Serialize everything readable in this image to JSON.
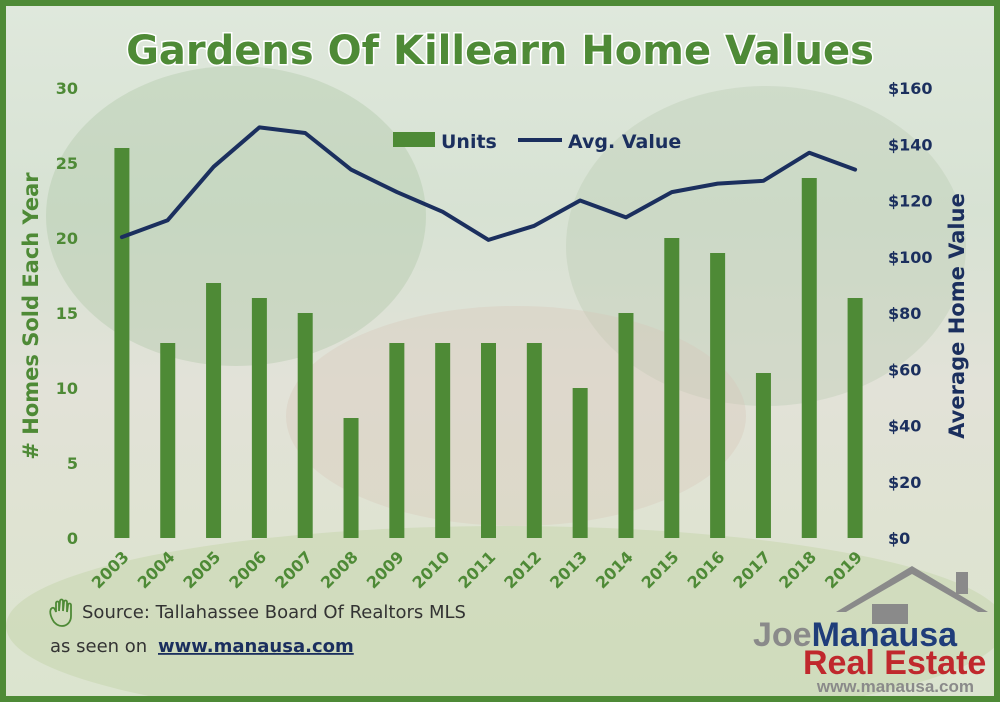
{
  "chart_data": {
    "type": "bar",
    "title": "Gardens Of Killearn Home Values",
    "categories": [
      "2003",
      "2004",
      "2005",
      "2006",
      "2007",
      "2008",
      "2009",
      "2010",
      "2011",
      "2012",
      "2013",
      "2014",
      "2015",
      "2016",
      "2017",
      "2018",
      "2019"
    ],
    "series": [
      {
        "name": "Units",
        "type": "bar",
        "axis": "left",
        "color": "#4e8a36",
        "values": [
          26,
          13,
          17,
          16,
          15,
          8,
          13,
          13,
          13,
          13,
          10,
          15,
          20,
          19,
          11,
          24,
          16
        ]
      },
      {
        "name": "Avg. Value",
        "type": "line",
        "axis": "right",
        "color": "#1b2f5e",
        "values": [
          107,
          113,
          132,
          146,
          144,
          131,
          123,
          116,
          106,
          111,
          120,
          114,
          123,
          126,
          127,
          137,
          131
        ]
      }
    ],
    "ylabel": "# Homes Sold Each Year",
    "y2label": "Average Home Value",
    "ylim": [
      0,
      30
    ],
    "y2lim": [
      0,
      160
    ],
    "yticks": [
      "0",
      "5",
      "10",
      "15",
      "20",
      "25",
      "30"
    ],
    "y2ticks": [
      "$0",
      "$20",
      "$40",
      "$60",
      "$80",
      "$100",
      "$120",
      "$140",
      "$160"
    ],
    "grid": false,
    "legend": "top-center"
  },
  "footer": {
    "source_text": "Source: Tallahassee Board Of Realtors MLS",
    "seen_on_text": "as seen on",
    "seen_on_link": "www.manausa.com"
  },
  "logo": {
    "joe": "Joe",
    "manausa": "Manausa",
    "real_estate": "Real Estate",
    "url": "www.manausa.com"
  },
  "colors": {
    "bar": "#4e8a36",
    "line": "#1b2f5e",
    "border": "#4e8a36"
  },
  "icons": {
    "source": "hand-icon",
    "logo": "house-icon"
  }
}
